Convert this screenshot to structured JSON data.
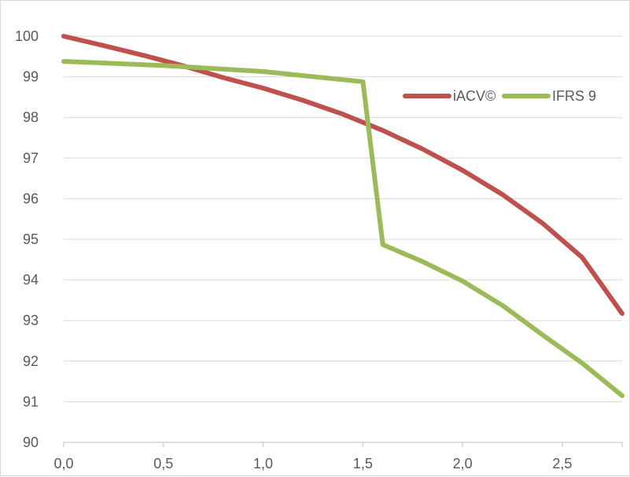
{
  "chart_data": {
    "type": "line",
    "title": "",
    "xlabel": "",
    "ylabel": "",
    "xlim": [
      0,
      2.8
    ],
    "ylim": [
      90,
      100
    ],
    "x_ticks": [
      0,
      0.5,
      1.0,
      1.5,
      2.0,
      2.5
    ],
    "x_tick_labels": [
      "0,0",
      "0,5",
      "1,0",
      "1,5",
      "2,0",
      "2,5"
    ],
    "y_ticks": [
      90,
      91,
      92,
      93,
      94,
      95,
      96,
      97,
      98,
      99,
      100
    ],
    "y_tick_labels": [
      "90",
      "91",
      "92",
      "93",
      "94",
      "95",
      "96",
      "97",
      "98",
      "99",
      "100"
    ],
    "grid": "horizontal",
    "legend_position": "right",
    "series": [
      {
        "name": "iACV©",
        "color": "#c0504d",
        "points": [
          [
            0.0,
            100.0
          ],
          [
            0.2,
            99.77
          ],
          [
            0.4,
            99.53
          ],
          [
            0.6,
            99.27
          ],
          [
            0.8,
            98.98
          ],
          [
            1.0,
            98.72
          ],
          [
            1.2,
            98.42
          ],
          [
            1.4,
            98.08
          ],
          [
            1.6,
            97.68
          ],
          [
            1.8,
            97.22
          ],
          [
            2.0,
            96.7
          ],
          [
            2.2,
            96.1
          ],
          [
            2.4,
            95.4
          ],
          [
            2.6,
            94.55
          ],
          [
            2.8,
            93.17
          ]
        ]
      },
      {
        "name": "IFRS 9",
        "color": "#9bbb59",
        "points": [
          [
            0.0,
            99.38
          ],
          [
            0.5,
            99.28
          ],
          [
            1.0,
            99.13
          ],
          [
            1.5,
            98.88
          ],
          [
            1.6,
            94.87
          ],
          [
            1.8,
            94.45
          ],
          [
            2.0,
            93.97
          ],
          [
            2.2,
            93.37
          ],
          [
            2.4,
            92.65
          ],
          [
            2.6,
            91.95
          ],
          [
            2.8,
            91.15
          ]
        ]
      }
    ]
  }
}
